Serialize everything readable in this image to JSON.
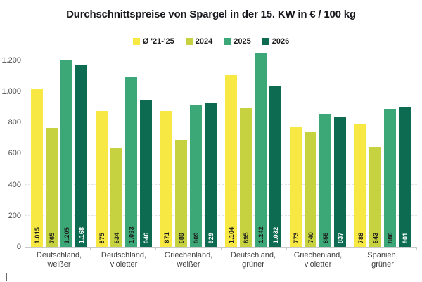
{
  "title": "Durchschnittspreise von Spargel in der 15. KW in € / 100 kg",
  "chart_data": {
    "type": "bar",
    "title": "Durchschnittspreise von Spargel in der 15. KW in € / 100 kg",
    "xlabel": "",
    "ylabel": "",
    "ylim": [
      0,
      1248
    ],
    "grid": "horizontal-dashed",
    "legend_position": "top-center",
    "categories": [
      "Deutschland,\nweißer",
      "Deutschland,\nvioletter",
      "Griechenland,\nweißer",
      "Deutschland,\ngrüner",
      "Griechenland,\nvioletter",
      "Spanien,\ngrüner"
    ],
    "yticks": [
      {
        "value": 0,
        "label": "0"
      },
      {
        "value": 200,
        "label": "200"
      },
      {
        "value": 400,
        "label": "400"
      },
      {
        "value": 600,
        "label": "600"
      },
      {
        "value": 800,
        "label": "800"
      },
      {
        "value": 1000,
        "label": "1.000"
      },
      {
        "value": 1200,
        "label": "1.200"
      }
    ],
    "series": [
      {
        "name": "Ø '21-'25",
        "color": "#f8e843",
        "label_color": "#1d1d1b",
        "values": [
          1015,
          875,
          871,
          1104,
          773,
          788
        ],
        "labels": [
          "1.015",
          "875",
          "871",
          "1.104",
          "773",
          "788"
        ]
      },
      {
        "name": "2024",
        "color": "#c6d23f",
        "label_color": "#1d1d1b",
        "values": [
          765,
          634,
          689,
          895,
          740,
          643
        ],
        "labels": [
          "765",
          "634",
          "689",
          "895",
          "740",
          "643"
        ]
      },
      {
        "name": "2025",
        "color": "#3ca878",
        "label_color": "#1d1d1b",
        "values": [
          1205,
          1093,
          909,
          1242,
          855,
          886
        ],
        "labels": [
          "1.205",
          "1.093",
          "909",
          "1.242",
          "855",
          "886"
        ]
      },
      {
        "name": "2026",
        "color": "#0c6b51",
        "label_color": "#ffffff",
        "values": [
          1168,
          946,
          929,
          1032,
          837,
          901
        ],
        "labels": [
          "1.168",
          "946",
          "929",
          "1.032",
          "837",
          "901"
        ]
      }
    ]
  }
}
